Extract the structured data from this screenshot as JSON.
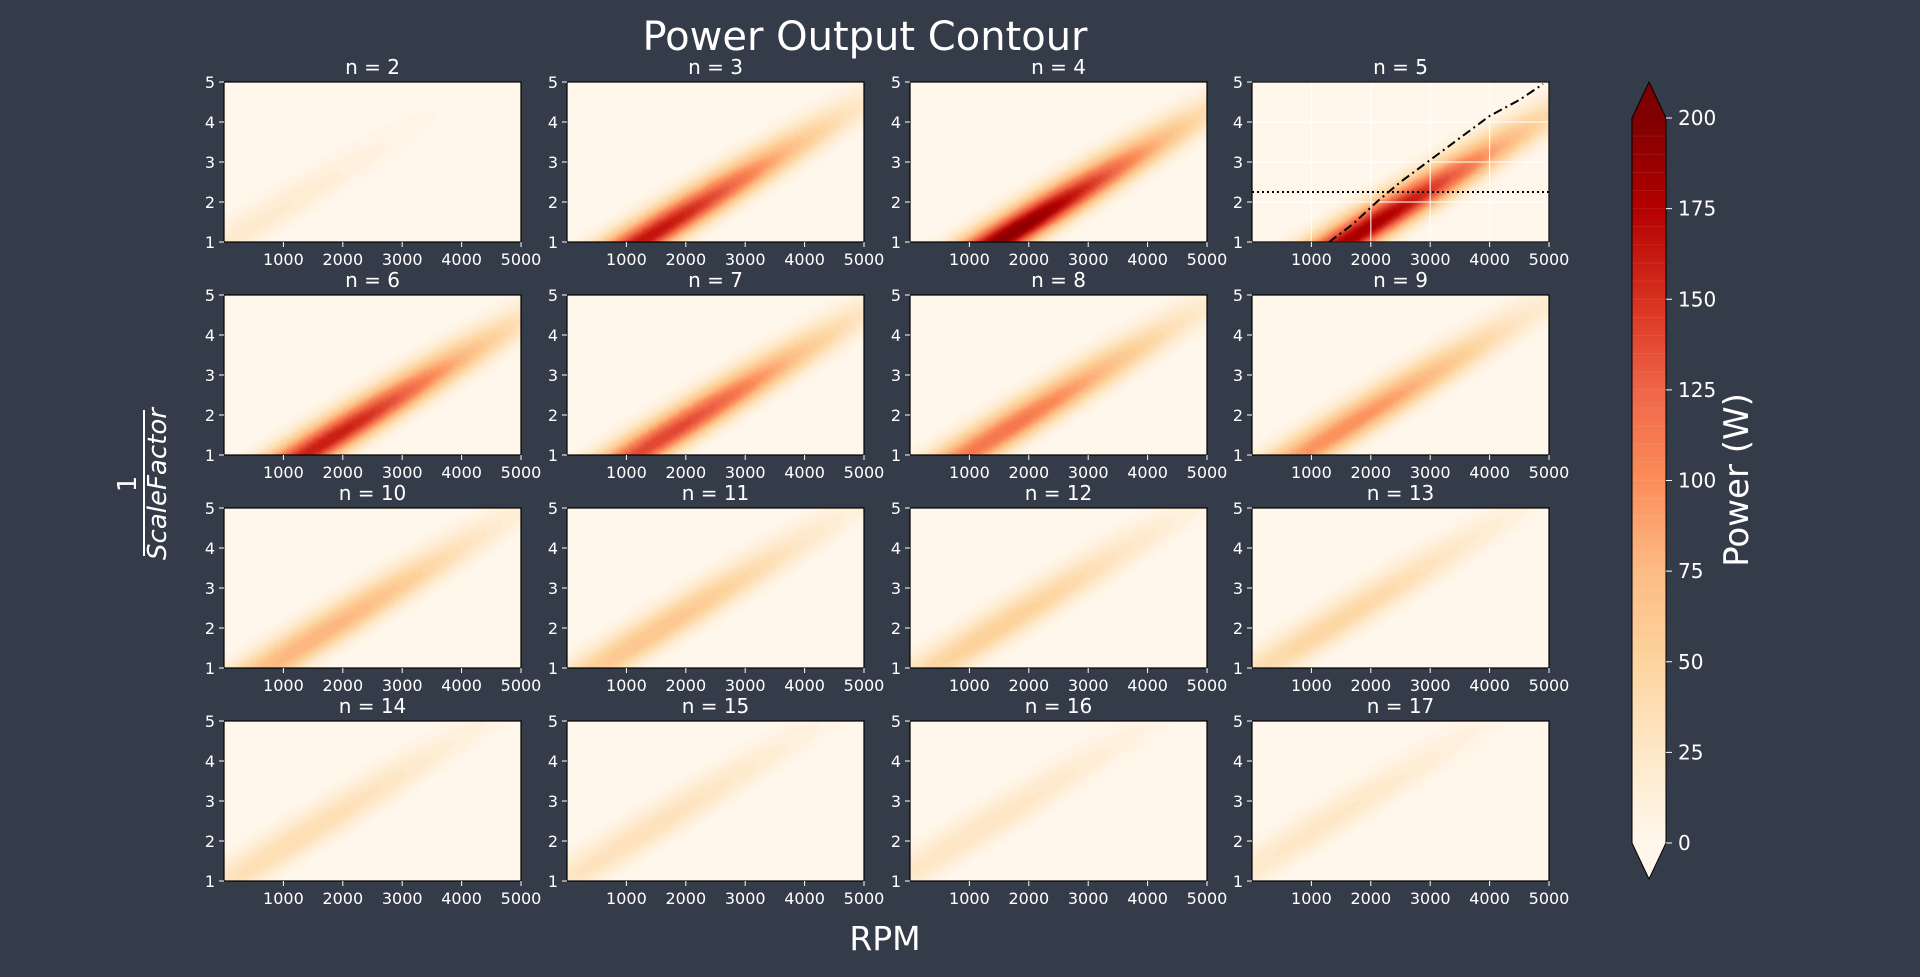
{
  "figure": {
    "title": "Power Output Contour",
    "xlabel": "RPM",
    "ylabel": "1/ScaleFactor",
    "ylabel_num": "1",
    "ylabel_den": "ScaleFactor"
  },
  "chart_data": {
    "type": "heatmap",
    "title": "Power Output Contour",
    "xlabel": "RPM",
    "ylabel": "1/ScaleFactor",
    "xlim": [
      0,
      5000
    ],
    "ylim": [
      1,
      5
    ],
    "x_ticks": [
      1000,
      2000,
      3000,
      4000,
      5000
    ],
    "y_ticks": [
      1,
      2,
      3,
      4,
      5
    ],
    "grid": false,
    "colormap": "OrRd",
    "colorbar": {
      "label": "Power (W)",
      "range": [
        0,
        200
      ],
      "ticks": [
        0,
        25,
        50,
        75,
        100,
        125,
        150,
        175,
        200
      ],
      "extend": "both"
    },
    "panels": [
      {
        "title": "n = 2",
        "n": 2,
        "peak_power": 22,
        "peak_rpm": 300,
        "peak_y": 1.2
      },
      {
        "title": "n = 3",
        "n": 3,
        "peak_power": 165,
        "peak_rpm": 1300,
        "peak_y": 1.05
      },
      {
        "title": "n = 4",
        "n": 4,
        "peak_power": 195,
        "peak_rpm": 1600,
        "peak_y": 1.1
      },
      {
        "title": "n = 5",
        "n": 5,
        "peak_power": 180,
        "peak_rpm": 1800,
        "peak_y": 1.2,
        "grid": true,
        "overlays": [
          {
            "style": "dotted",
            "x": [
              0,
              5000
            ],
            "y": [
              2.25,
              2.25
            ]
          },
          {
            "style": "dashdot",
            "x": [
              1300,
              1700,
              2100,
              2500,
              3000,
              3500,
              4000,
              4500,
              4900
            ],
            "y": [
              1.0,
              1.45,
              2.0,
              2.5,
              3.05,
              3.6,
              4.15,
              4.55,
              4.95
            ]
          }
        ]
      },
      {
        "title": "n = 6",
        "n": 6,
        "peak_power": 160,
        "peak_rpm": 1700,
        "peak_y": 1.3
      },
      {
        "title": "n = 7",
        "n": 7,
        "peak_power": 140,
        "peak_rpm": 1600,
        "peak_y": 1.4
      },
      {
        "title": "n = 8",
        "n": 8,
        "peak_power": 115,
        "peak_rpm": 1500,
        "peak_y": 1.5
      },
      {
        "title": "n = 9",
        "n": 9,
        "peak_power": 100,
        "peak_rpm": 1500,
        "peak_y": 1.6
      },
      {
        "title": "n = 10",
        "n": 10,
        "peak_power": 80,
        "peak_rpm": 1500,
        "peak_y": 1.7
      },
      {
        "title": "n = 11",
        "n": 11,
        "peak_power": 65,
        "peak_rpm": 1400,
        "peak_y": 1.8
      },
      {
        "title": "n = 12",
        "n": 12,
        "peak_power": 55,
        "peak_rpm": 1400,
        "peak_y": 1.9
      },
      {
        "title": "n = 13",
        "n": 13,
        "peak_power": 48,
        "peak_rpm": 1300,
        "peak_y": 2.0
      },
      {
        "title": "n = 14",
        "n": 14,
        "peak_power": 40,
        "peak_rpm": 1200,
        "peak_y": 2.0
      },
      {
        "title": "n = 15",
        "n": 15,
        "peak_power": 35,
        "peak_rpm": 1200,
        "peak_y": 2.1
      },
      {
        "title": "n = 16",
        "n": 16,
        "peak_power": 30,
        "peak_rpm": 1100,
        "peak_y": 2.2
      },
      {
        "title": "n = 17",
        "n": 17,
        "peak_power": 27,
        "peak_rpm": 1100,
        "peak_y": 2.3
      }
    ]
  },
  "colors": {
    "background": "#353c49",
    "cmap_stops": [
      "#fff7ec",
      "#fee8c8",
      "#fdd49e",
      "#fdbb84",
      "#fc8d59",
      "#ef6548",
      "#d7301f",
      "#b30000",
      "#7f0000"
    ],
    "frame": "#000000",
    "overlay": "#000000"
  }
}
